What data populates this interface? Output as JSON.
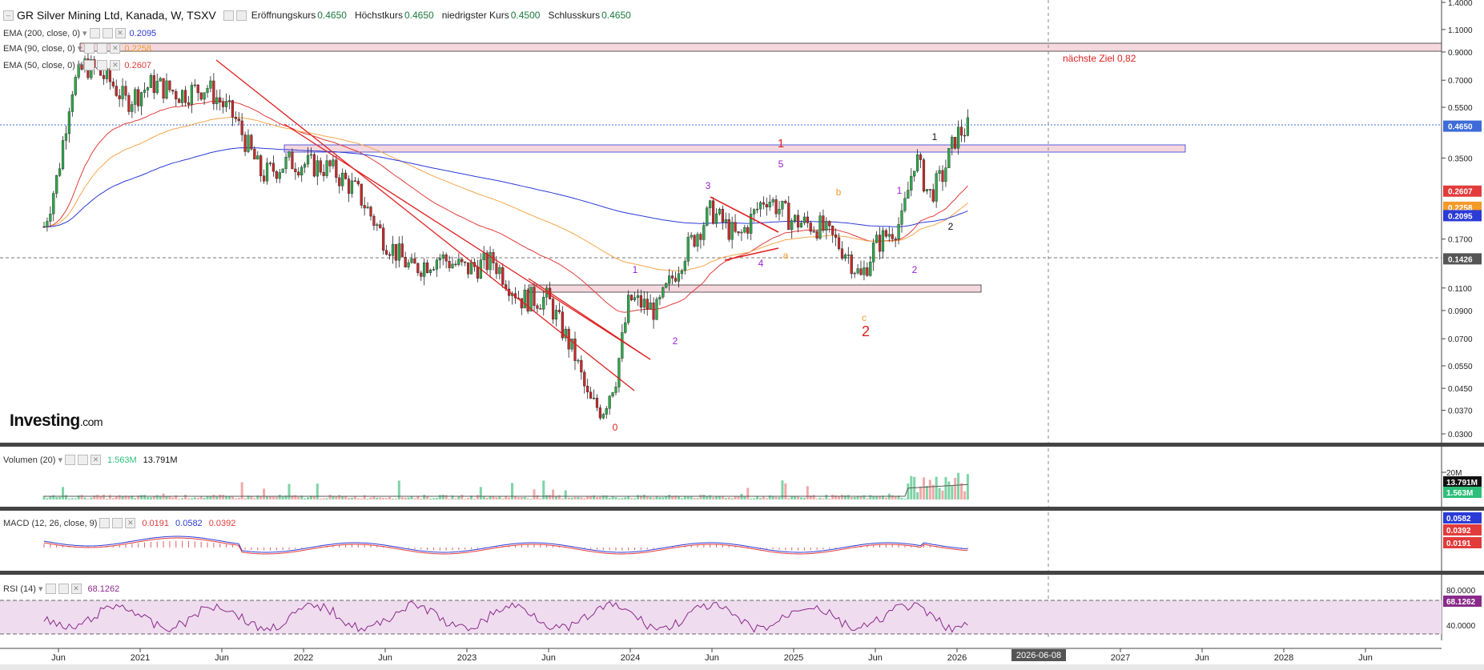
{
  "header": {
    "title": "GR Silver Mining Ltd, Kanada, W, TSXV",
    "open_label": "Eröffnungskurs",
    "open": "0.4650",
    "high_label": "Höchstkurs",
    "high": "0.4650",
    "low_label": "niedrigster Kurs",
    "low": "0.4500",
    "close_label": "Schlusskurs",
    "close": "0.4650"
  },
  "overlays": {
    "ema200": {
      "label": "EMA (200, close, 0)",
      "value": "0.2095",
      "color": "#2b3bd6"
    },
    "ema90": {
      "label": "EMA (90, close, 0)",
      "value": "0.2258",
      "color": "#f5a54a"
    },
    "ema50": {
      "label": "EMA (50, close, 0)",
      "value": "0.2607",
      "color": "#e23b3b"
    }
  },
  "panels": {
    "volume": {
      "label": "Volumen (20)",
      "v1": "1.563M",
      "v2": "13.791M",
      "tick": "20M"
    },
    "macd": {
      "label": "MACD (12, 26, close, 9)",
      "v1": "0.0191",
      "v2": "0.0582",
      "v3": "0.0392"
    },
    "rsi": {
      "label": "RSI (14)",
      "value": "68.1262",
      "tick1": "80.0000",
      "tick2": "40.0000"
    }
  },
  "logo": {
    "main": "Investing",
    "suffix": ".com"
  },
  "chart_data": {
    "type": "candlestick",
    "price_axis_ticks": [
      "1.4000",
      "1.1000",
      "0.9000",
      "0.7000",
      "0.5500",
      "0.4650",
      "0.3500",
      "0.2607",
      "0.2258",
      "0.2095",
      "0.1700",
      "0.1426",
      "0.1100",
      "0.0900",
      "0.0700",
      "0.0550",
      "0.0450",
      "0.0370",
      "0.0300"
    ],
    "time_axis_labels": [
      "Jun",
      "2021",
      "Jun",
      "2022",
      "Jun",
      "2023",
      "Jun",
      "2024",
      "Jun",
      "2025",
      "Jun",
      "2026",
      "2026-06-08",
      "2027",
      "Jun",
      "2028",
      "Jun"
    ],
    "price_tags": [
      {
        "value": "0.4650",
        "color": "#3d6bd8"
      },
      {
        "value": "0.2607",
        "color": "#e23b3b"
      },
      {
        "value": "0.2258",
        "color": "#f39a2a"
      },
      {
        "value": "0.2095",
        "color": "#2b3bd6"
      },
      {
        "value": "0.1426",
        "color": "#555555"
      }
    ],
    "side_tags": [
      {
        "value": "13.791M",
        "color": "#111111"
      },
      {
        "value": "1.563M",
        "color": "#2ebf7a"
      },
      {
        "value": "0.0582",
        "color": "#2b3bd6"
      },
      {
        "value": "0.0392",
        "color": "#e23b3b"
      },
      {
        "value": "0.0191",
        "color": "#e23b3b"
      },
      {
        "value": "68.1262",
        "color": "#8a2a8a"
      }
    ],
    "annotations": [
      {
        "text": "nächste Ziel 0,82",
        "color": "#e01f1f"
      },
      {
        "text": "1",
        "color": "#e01f1f"
      },
      {
        "text": "2",
        "color": "#e01f1f"
      },
      {
        "text": "0",
        "color": "#e01f1f"
      },
      {
        "text": "1",
        "color": "#9b1fd6"
      },
      {
        "text": "2",
        "color": "#9b1fd6"
      },
      {
        "text": "3",
        "color": "#9b1fd6"
      },
      {
        "text": "4",
        "color": "#9b1fd6"
      },
      {
        "text": "5",
        "color": "#9b1fd6"
      },
      {
        "text": "a",
        "color": "#f39a2a"
      },
      {
        "text": "b",
        "color": "#f39a2a"
      },
      {
        "text": "c",
        "color": "#f39a2a"
      },
      {
        "text": "1",
        "color": "#9b1fd6"
      },
      {
        "text": "2",
        "color": "#9b1fd6"
      },
      {
        "text": "1",
        "color": "#111111"
      },
      {
        "text": "2",
        "color": "#111111"
      }
    ],
    "price_path": [
      [
        "2020-05",
        0.19
      ],
      [
        "2020-06",
        0.3
      ],
      [
        "2020-07",
        0.65
      ],
      [
        "2020-08",
        0.8
      ],
      [
        "2020-09",
        0.75
      ],
      [
        "2020-10",
        0.68
      ],
      [
        "2020-11",
        0.58
      ],
      [
        "2021-01",
        0.68
      ],
      [
        "2021-03",
        0.62
      ],
      [
        "2021-05",
        0.66
      ],
      [
        "2021-07",
        0.5
      ],
      [
        "2021-09",
        0.3
      ],
      [
        "2021-11",
        0.34
      ],
      [
        "2022-02",
        0.32
      ],
      [
        "2022-04",
        0.26
      ],
      [
        "2022-06",
        0.17
      ],
      [
        "2022-08",
        0.13
      ],
      [
        "2022-10",
        0.145
      ],
      [
        "2022-12",
        0.13
      ],
      [
        "2023-02",
        0.14
      ],
      [
        "2023-04",
        0.1
      ],
      [
        "2023-06",
        0.1
      ],
      [
        "2023-08",
        0.06
      ],
      [
        "2023-09",
        0.04
      ],
      [
        "2023-10",
        0.037
      ],
      [
        "2023-11",
        0.05
      ],
      [
        "2023-12",
        0.1
      ],
      [
        "2024-02",
        0.09
      ],
      [
        "2024-04",
        0.15
      ],
      [
        "2024-06",
        0.22
      ],
      [
        "2024-08",
        0.17
      ],
      [
        "2024-10",
        0.25
      ],
      [
        "2024-12",
        0.2
      ],
      [
        "2025-02",
        0.19
      ],
      [
        "2025-04",
        0.15
      ],
      [
        "2025-05",
        0.12
      ],
      [
        "2025-06",
        0.16
      ],
      [
        "2025-08",
        0.2
      ],
      [
        "2025-09",
        0.36
      ],
      [
        "2025-10",
        0.25
      ],
      [
        "2025-11",
        0.3
      ],
      [
        "2025-12",
        0.43
      ],
      [
        "2026-01",
        0.465
      ]
    ]
  }
}
